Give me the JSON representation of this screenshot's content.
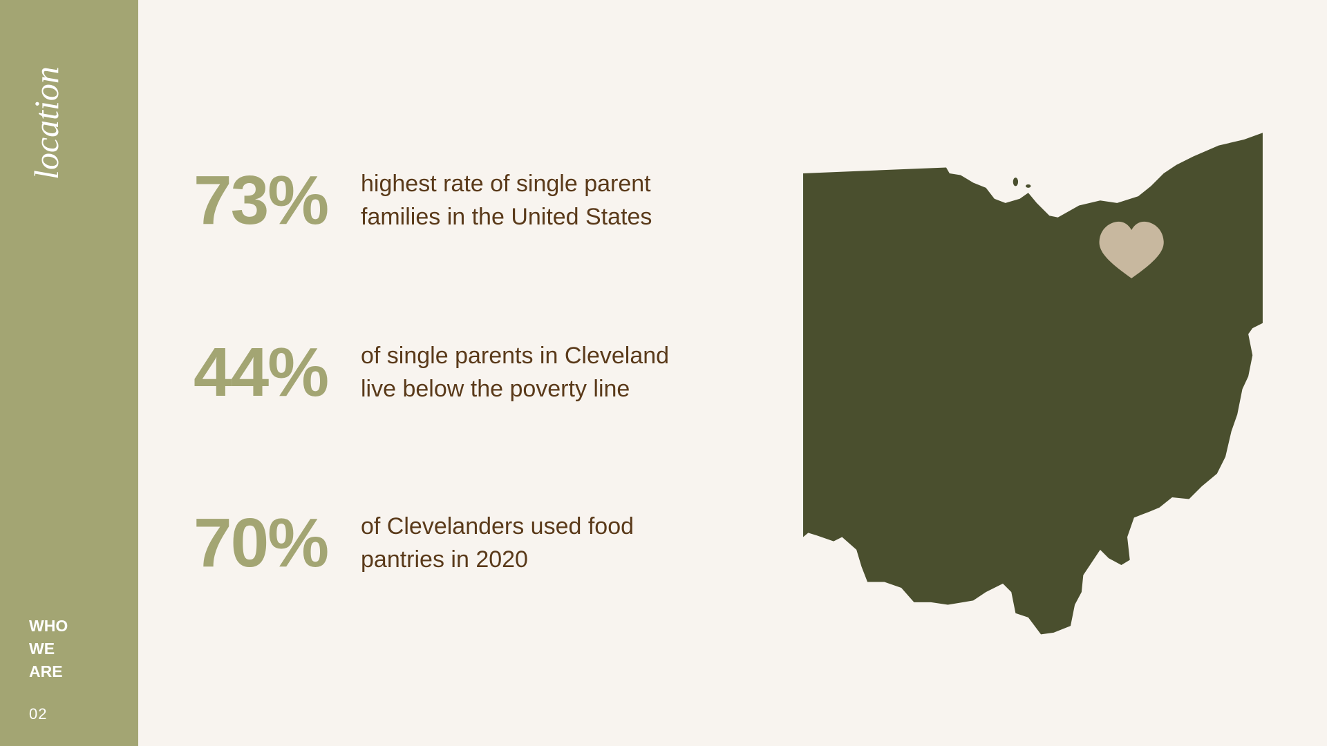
{
  "sidebar": {
    "title": "location",
    "section": [
      "WHO",
      "WE",
      "ARE"
    ],
    "page": "02"
  },
  "stats": [
    {
      "value": "73%",
      "lines": [
        "highest rate of single parent",
        "families in the United States"
      ]
    },
    {
      "value": "44%",
      "lines": [
        "of single parents in Cleveland",
        "live below the poverty line"
      ]
    },
    {
      "value": "70%",
      "lines": [
        "of Clevelanders used food",
        "pantries in 2020"
      ]
    }
  ]
}
